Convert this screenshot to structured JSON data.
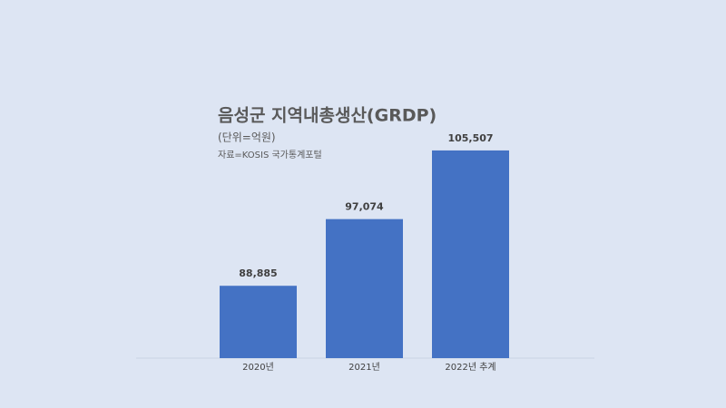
{
  "chart_data": {
    "type": "bar",
    "title": "음성군 지역내총생산(GRDP)",
    "subtitle": "(단위=억원)",
    "source": "자료=KOSIS 국가통계포털",
    "categories": [
      "2020년",
      "2021년",
      "2022년 추계"
    ],
    "values": [
      88885,
      97074,
      105507
    ],
    "value_labels": [
      "88,885",
      "97,074",
      "105,507"
    ],
    "color": "#4472c4",
    "ylim": [
      80000,
      106000
    ]
  }
}
